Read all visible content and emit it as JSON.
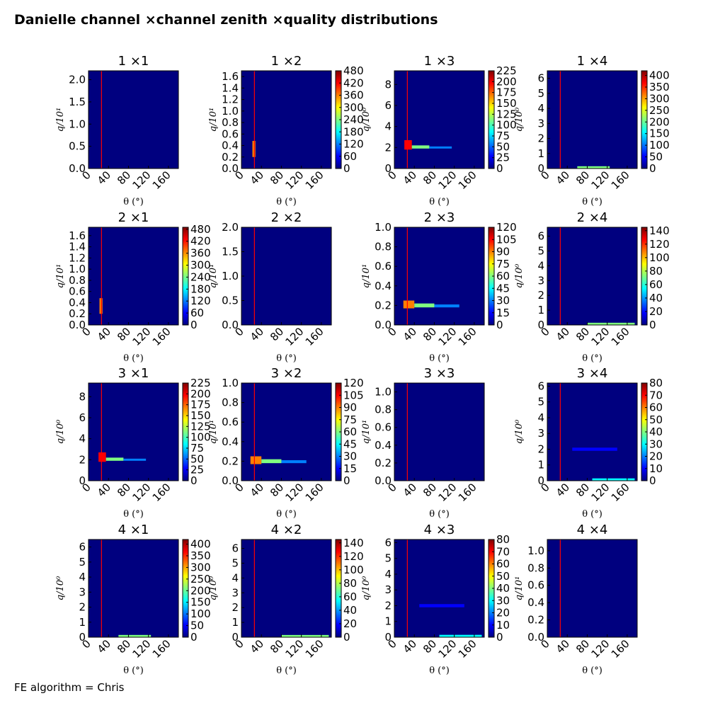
{
  "figure": {
    "title": "Danielle channel ×channel zenith ×quality distributions",
    "footer": "FE algorithm = Chris"
  },
  "colors": {
    "background": "#00007f",
    "marker_line": "#ff0000",
    "colormap": [
      "#00007f",
      "#0000ff",
      "#0080ff",
      "#00ffff",
      "#80ff80",
      "#ffff00",
      "#ff8000",
      "#ff0000",
      "#7f0000"
    ]
  },
  "chart_data": [
    {
      "type": "heatmap",
      "title": "1  ×1",
      "xlabel": "θ (°)",
      "ylabel": "q/10¹",
      "xlim": [
        0,
        180
      ],
      "xticks": [
        "0",
        "40",
        "80",
        "120",
        "160"
      ],
      "ylim": [
        0,
        2.2
      ],
      "yticks": [
        "0.0",
        "0.5",
        "1.0",
        "1.5",
        "2.0"
      ],
      "colorbar": null,
      "marker_x": 26,
      "hotspots": []
    },
    {
      "type": "heatmap",
      "title": "1  ×2",
      "xlabel": "θ (°)",
      "ylabel": "q/10¹",
      "xlim": [
        0,
        180
      ],
      "xticks": [
        "0",
        "40",
        "80",
        "120",
        "160"
      ],
      "ylim": [
        0,
        1.7
      ],
      "yticks": [
        "0.0",
        "0.2",
        "0.4",
        "0.6",
        "0.8",
        "1.0",
        "1.2",
        "1.4",
        "1.6"
      ],
      "colorbar": {
        "max": 480,
        "ticks": [
          "0",
          "60",
          "120",
          "180",
          "240",
          "300",
          "360",
          "420",
          "480"
        ]
      },
      "marker_x": 26,
      "hotspots": [
        {
          "x0": 22,
          "x1": 28,
          "y0": 0.2,
          "y1": 0.48,
          "level": 0.7
        }
      ]
    },
    {
      "type": "heatmap",
      "title": "1  ×3",
      "xlabel": "θ (°)",
      "ylabel": "q/10⁰",
      "xlim": [
        0,
        180
      ],
      "xticks": [
        "0",
        "40",
        "80",
        "120",
        "160"
      ],
      "ylim": [
        0,
        9.3
      ],
      "yticks": [
        "0",
        "2",
        "4",
        "6",
        "8"
      ],
      "colorbar": {
        "max": 225,
        "ticks": [
          "0",
          "25",
          "50",
          "75",
          "100",
          "125",
          "150",
          "175",
          "200",
          "225"
        ]
      },
      "marker_x": 26,
      "hotspots": [
        {
          "x0": 20,
          "x1": 35,
          "y0": 1.8,
          "y1": 2.7,
          "level": 0.85
        },
        {
          "x0": 35,
          "x1": 70,
          "y0": 1.9,
          "y1": 2.2,
          "level": 0.5
        },
        {
          "x0": 70,
          "x1": 115,
          "y0": 1.9,
          "y1": 2.1,
          "level": 0.3
        }
      ]
    },
    {
      "type": "heatmap",
      "title": "1  ×4",
      "xlabel": "θ (°)",
      "ylabel": "q/10⁰",
      "xlim": [
        0,
        180
      ],
      "xticks": [
        "0",
        "40",
        "80",
        "120",
        "160"
      ],
      "ylim": [
        0,
        6.5
      ],
      "yticks": [
        "0",
        "1",
        "2",
        "3",
        "4",
        "5",
        "6"
      ],
      "colorbar": {
        "max": 420,
        "ticks": [
          "0",
          "50",
          "100",
          "150",
          "200",
          "250",
          "300",
          "350",
          "400"
        ]
      },
      "marker_x": 26,
      "hotspots": [
        {
          "x0": 60,
          "x1": 125,
          "y0": 0.0,
          "y1": 0.15,
          "level": 0.5
        }
      ]
    },
    {
      "type": "heatmap",
      "title": "2  ×1",
      "xlabel": "θ (°)",
      "ylabel": "q/10¹",
      "xlim": [
        0,
        180
      ],
      "xticks": [
        "0",
        "40",
        "80",
        "120",
        "160"
      ],
      "ylim": [
        0,
        1.75
      ],
      "yticks": [
        "0.0",
        "0.2",
        "0.4",
        "0.6",
        "0.8",
        "1.0",
        "1.2",
        "1.4",
        "1.6"
      ],
      "colorbar": {
        "max": 490,
        "ticks": [
          "0",
          "60",
          "120",
          "180",
          "240",
          "300",
          "360",
          "420",
          "480"
        ]
      },
      "marker_x": 26,
      "hotspots": [
        {
          "x0": 22,
          "x1": 28,
          "y0": 0.2,
          "y1": 0.48,
          "level": 0.7
        }
      ]
    },
    {
      "type": "heatmap",
      "title": "2  ×2",
      "xlabel": "θ (°)",
      "ylabel": "q/10¹",
      "xlim": [
        0,
        180
      ],
      "xticks": [
        "0",
        "40",
        "80",
        "120",
        "160"
      ],
      "ylim": [
        0,
        2.0
      ],
      "yticks": [
        "0.0",
        "0.5",
        "1.0",
        "1.5",
        "2.0"
      ],
      "colorbar": null,
      "marker_x": 26,
      "hotspots": []
    },
    {
      "type": "heatmap",
      "title": "2  ×3",
      "xlabel": "θ (°)",
      "ylabel": "q/10¹",
      "xlim": [
        0,
        180
      ],
      "xticks": [
        "0",
        "40",
        "80",
        "120",
        "160"
      ],
      "ylim": [
        0,
        1.0
      ],
      "yticks": [
        "0.0",
        "0.2",
        "0.4",
        "0.6",
        "0.8",
        "1.0"
      ],
      "colorbar": {
        "max": 120,
        "ticks": [
          "0",
          "15",
          "30",
          "45",
          "60",
          "75",
          "90",
          "105",
          "120"
        ]
      },
      "marker_x": 26,
      "hotspots": [
        {
          "x0": 18,
          "x1": 40,
          "y0": 0.17,
          "y1": 0.25,
          "level": 0.8
        },
        {
          "x0": 40,
          "x1": 80,
          "y0": 0.18,
          "y1": 0.22,
          "level": 0.45
        },
        {
          "x0": 80,
          "x1": 130,
          "y0": 0.18,
          "y1": 0.21,
          "level": 0.25
        }
      ]
    },
    {
      "type": "heatmap",
      "title": "2  ×4",
      "xlabel": "θ (°)",
      "ylabel": "q/10⁰",
      "xlim": [
        0,
        180
      ],
      "xticks": [
        "0",
        "40",
        "80",
        "120",
        "160"
      ],
      "ylim": [
        0,
        6.6
      ],
      "yticks": [
        "0",
        "1",
        "2",
        "3",
        "4",
        "5",
        "6"
      ],
      "colorbar": {
        "max": 145,
        "ticks": [
          "0",
          "20",
          "40",
          "60",
          "80",
          "100",
          "120",
          "140"
        ]
      },
      "marker_x": 26,
      "hotspots": [
        {
          "x0": 80,
          "x1": 175,
          "y0": 0.0,
          "y1": 0.15,
          "level": 0.45
        }
      ]
    },
    {
      "type": "heatmap",
      "title": "3  ×1",
      "xlabel": "θ (°)",
      "ylabel": "q/10⁰",
      "xlim": [
        0,
        180
      ],
      "xticks": [
        "0",
        "40",
        "80",
        "120",
        "160"
      ],
      "ylim": [
        0,
        9.3
      ],
      "yticks": [
        "0",
        "2",
        "4",
        "6",
        "8"
      ],
      "colorbar": {
        "max": 225,
        "ticks": [
          "0",
          "25",
          "50",
          "75",
          "100",
          "125",
          "150",
          "175",
          "200",
          "225"
        ]
      },
      "marker_x": 26,
      "hotspots": [
        {
          "x0": 20,
          "x1": 35,
          "y0": 1.8,
          "y1": 2.7,
          "level": 0.85
        },
        {
          "x0": 35,
          "x1": 70,
          "y0": 1.9,
          "y1": 2.2,
          "level": 0.5
        },
        {
          "x0": 70,
          "x1": 115,
          "y0": 1.9,
          "y1": 2.1,
          "level": 0.3
        }
      ]
    },
    {
      "type": "heatmap",
      "title": "3  ×2",
      "xlabel": "θ (°)",
      "ylabel": "q/10¹",
      "xlim": [
        0,
        180
      ],
      "xticks": [
        "0",
        "40",
        "80",
        "120",
        "160"
      ],
      "ylim": [
        0,
        1.0
      ],
      "yticks": [
        "0.0",
        "0.2",
        "0.4",
        "0.6",
        "0.8",
        "1.0"
      ],
      "colorbar": {
        "max": 120,
        "ticks": [
          "0",
          "15",
          "30",
          "45",
          "60",
          "75",
          "90",
          "105",
          "120"
        ]
      },
      "marker_x": 26,
      "hotspots": [
        {
          "x0": 18,
          "x1": 40,
          "y0": 0.17,
          "y1": 0.25,
          "level": 0.8
        },
        {
          "x0": 40,
          "x1": 80,
          "y0": 0.18,
          "y1": 0.22,
          "level": 0.45
        },
        {
          "x0": 80,
          "x1": 130,
          "y0": 0.18,
          "y1": 0.21,
          "level": 0.25
        }
      ]
    },
    {
      "type": "heatmap",
      "title": "3  ×3",
      "xlabel": "θ (°)",
      "ylabel": "q/10¹",
      "xlim": [
        0,
        180
      ],
      "xticks": [
        "0",
        "40",
        "80",
        "120",
        "160"
      ],
      "ylim": [
        0,
        1.1
      ],
      "yticks": [
        "0.0",
        "0.2",
        "0.4",
        "0.6",
        "0.8",
        "1.0"
      ],
      "colorbar": null,
      "marker_x": 26,
      "hotspots": []
    },
    {
      "type": "heatmap",
      "title": "3  ×4",
      "xlabel": "θ (°)",
      "ylabel": "q/10⁰",
      "xlim": [
        0,
        180
      ],
      "xticks": [
        "0",
        "40",
        "80",
        "120",
        "160"
      ],
      "ylim": [
        0,
        6.2
      ],
      "yticks": [
        "0",
        "1",
        "2",
        "3",
        "4",
        "5",
        "6"
      ],
      "colorbar": {
        "max": 80,
        "ticks": [
          "0",
          "10",
          "20",
          "30",
          "40",
          "50",
          "60",
          "70",
          "80"
        ]
      },
      "marker_x": 26,
      "hotspots": [
        {
          "x0": 90,
          "x1": 175,
          "y0": 0.0,
          "y1": 0.15,
          "level": 0.4
        },
        {
          "x0": 50,
          "x1": 140,
          "y0": 1.9,
          "y1": 2.1,
          "level": 0.12
        }
      ]
    },
    {
      "type": "heatmap",
      "title": "4  ×1",
      "xlabel": "θ (°)",
      "ylabel": "q/10⁰",
      "xlim": [
        0,
        180
      ],
      "xticks": [
        "0",
        "40",
        "80",
        "120",
        "160"
      ],
      "ylim": [
        0,
        6.5
      ],
      "yticks": [
        "0",
        "1",
        "2",
        "3",
        "4",
        "5",
        "6"
      ],
      "colorbar": {
        "max": 420,
        "ticks": [
          "0",
          "50",
          "100",
          "150",
          "200",
          "250",
          "300",
          "350",
          "400"
        ]
      },
      "marker_x": 26,
      "hotspots": [
        {
          "x0": 60,
          "x1": 125,
          "y0": 0.0,
          "y1": 0.15,
          "level": 0.5
        }
      ]
    },
    {
      "type": "heatmap",
      "title": "4  ×2",
      "xlabel": "θ (°)",
      "ylabel": "q/10⁰",
      "xlim": [
        0,
        180
      ],
      "xticks": [
        "0",
        "40",
        "80",
        "120",
        "160"
      ],
      "ylim": [
        0,
        6.6
      ],
      "yticks": [
        "0",
        "1",
        "2",
        "3",
        "4",
        "5",
        "6"
      ],
      "colorbar": {
        "max": 145,
        "ticks": [
          "0",
          "20",
          "40",
          "60",
          "80",
          "100",
          "120",
          "140"
        ]
      },
      "marker_x": 26,
      "hotspots": [
        {
          "x0": 80,
          "x1": 175,
          "y0": 0.0,
          "y1": 0.15,
          "level": 0.45
        }
      ]
    },
    {
      "type": "heatmap",
      "title": "4  ×3",
      "xlabel": "θ (°)",
      "ylabel": "q/10⁰",
      "xlim": [
        0,
        180
      ],
      "xticks": [
        "0",
        "40",
        "80",
        "120",
        "160"
      ],
      "ylim": [
        0,
        6.2
      ],
      "yticks": [
        "0",
        "1",
        "2",
        "3",
        "4",
        "5",
        "6"
      ],
      "colorbar": {
        "max": 80,
        "ticks": [
          "0",
          "10",
          "20",
          "30",
          "40",
          "50",
          "60",
          "70",
          "80"
        ]
      },
      "marker_x": 26,
      "hotspots": [
        {
          "x0": 90,
          "x1": 175,
          "y0": 0.0,
          "y1": 0.15,
          "level": 0.4
        },
        {
          "x0": 50,
          "x1": 140,
          "y0": 1.9,
          "y1": 2.1,
          "level": 0.12
        }
      ]
    },
    {
      "type": "heatmap",
      "title": "4  ×4",
      "xlabel": "θ (°)",
      "ylabel": "q/10¹",
      "xlim": [
        0,
        180
      ],
      "xticks": [
        "0",
        "40",
        "80",
        "120",
        "160"
      ],
      "ylim": [
        0,
        1.13
      ],
      "yticks": [
        "0.0",
        "0.2",
        "0.4",
        "0.6",
        "0.8",
        "1.0"
      ],
      "colorbar": null,
      "marker_x": 26,
      "hotspots": []
    }
  ]
}
